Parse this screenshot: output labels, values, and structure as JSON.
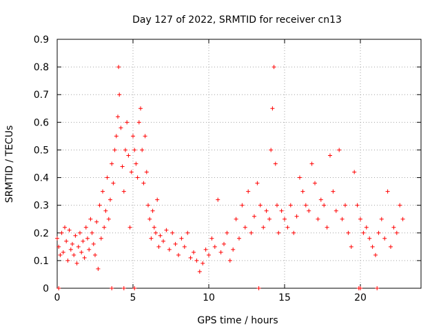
{
  "chart_data": {
    "type": "scatter",
    "title": "Day 127 of 2022, SRMTID for receiver cn13",
    "xlabel": "GPS time / hours",
    "ylabel": "SRMTID / TECUs",
    "xlim": [
      0,
      24
    ],
    "ylim": [
      0,
      0.9
    ],
    "xticks": [
      0,
      5,
      10,
      15,
      20
    ],
    "yticks": [
      0,
      0.1,
      0.2,
      0.3,
      0.4,
      0.5,
      0.6,
      0.7,
      0.8,
      0.9
    ],
    "xtick_labels": [
      "0",
      "5",
      "10",
      "15",
      "20"
    ],
    "ytick_labels": [
      "0",
      "0.1",
      "0.2",
      "0.3",
      "0.4",
      "0.5",
      "0.6",
      "0.7",
      "0.8",
      "0.9"
    ],
    "grid": true,
    "marker": "+",
    "color": "#ff0000",
    "series": [
      {
        "name": "SRMTID",
        "points": [
          [
            0.0,
            0.18
          ],
          [
            0.1,
            0.15
          ],
          [
            0.2,
            0.12
          ],
          [
            0.3,
            0.2
          ],
          [
            0.4,
            0.13
          ],
          [
            0.5,
            0.22
          ],
          [
            0.6,
            0.17
          ],
          [
            0.7,
            0.1
          ],
          [
            0.8,
            0.21
          ],
          [
            0.9,
            0.14
          ],
          [
            1.0,
            0.16
          ],
          [
            1.1,
            0.12
          ],
          [
            1.2,
            0.19
          ],
          [
            1.3,
            0.09
          ],
          [
            1.4,
            0.15
          ],
          [
            1.5,
            0.2
          ],
          [
            1.6,
            0.13
          ],
          [
            1.7,
            0.17
          ],
          [
            1.8,
            0.11
          ],
          [
            1.9,
            0.22
          ],
          [
            2.0,
            0.18
          ],
          [
            2.1,
            0.14
          ],
          [
            2.2,
            0.25
          ],
          [
            2.3,
            0.2
          ],
          [
            2.4,
            0.16
          ],
          [
            2.5,
            0.12
          ],
          [
            2.6,
            0.24
          ],
          [
            2.7,
            0.07
          ],
          [
            2.8,
            0.3
          ],
          [
            2.9,
            0.18
          ],
          [
            3.0,
            0.35
          ],
          [
            3.1,
            0.22
          ],
          [
            3.2,
            0.28
          ],
          [
            3.3,
            0.4
          ],
          [
            3.4,
            0.25
          ],
          [
            3.5,
            0.32
          ],
          [
            3.6,
            0.45
          ],
          [
            3.7,
            0.38
          ],
          [
            3.8,
            0.5
          ],
          [
            3.9,
            0.55
          ],
          [
            4.0,
            0.62
          ],
          [
            4.05,
            0.8
          ],
          [
            4.1,
            0.7
          ],
          [
            4.2,
            0.58
          ],
          [
            4.3,
            0.44
          ],
          [
            4.4,
            0.35
          ],
          [
            4.5,
            0.5
          ],
          [
            4.6,
            0.6
          ],
          [
            4.7,
            0.48
          ],
          [
            4.8,
            0.22
          ],
          [
            4.9,
            0.42
          ],
          [
            5.0,
            0.55
          ],
          [
            5.1,
            0.5
          ],
          [
            5.2,
            0.45
          ],
          [
            5.3,
            0.4
          ],
          [
            5.4,
            0.6
          ],
          [
            5.5,
            0.65
          ],
          [
            5.6,
            0.5
          ],
          [
            5.7,
            0.38
          ],
          [
            5.8,
            0.55
          ],
          [
            5.9,
            0.42
          ],
          [
            6.0,
            0.3
          ],
          [
            6.1,
            0.25
          ],
          [
            6.2,
            0.18
          ],
          [
            6.3,
            0.28
          ],
          [
            6.4,
            0.22
          ],
          [
            6.5,
            0.2
          ],
          [
            6.6,
            0.32
          ],
          [
            6.7,
            0.15
          ],
          [
            6.8,
            0.19
          ],
          [
            7.0,
            0.17
          ],
          [
            7.2,
            0.21
          ],
          [
            7.4,
            0.14
          ],
          [
            7.6,
            0.2
          ],
          [
            7.8,
            0.16
          ],
          [
            8.0,
            0.12
          ],
          [
            8.2,
            0.18
          ],
          [
            8.4,
            0.15
          ],
          [
            8.6,
            0.2
          ],
          [
            8.8,
            0.11
          ],
          [
            9.0,
            0.13
          ],
          [
            9.2,
            0.1
          ],
          [
            9.4,
            0.06
          ],
          [
            9.6,
            0.09
          ],
          [
            9.8,
            0.14
          ],
          [
            10.0,
            0.12
          ],
          [
            10.2,
            0.18
          ],
          [
            10.4,
            0.15
          ],
          [
            10.6,
            0.32
          ],
          [
            10.8,
            0.13
          ],
          [
            11.0,
            0.16
          ],
          [
            11.2,
            0.2
          ],
          [
            11.4,
            0.1
          ],
          [
            11.6,
            0.14
          ],
          [
            11.8,
            0.25
          ],
          [
            12.0,
            0.18
          ],
          [
            12.2,
            0.3
          ],
          [
            12.4,
            0.22
          ],
          [
            12.6,
            0.35
          ],
          [
            12.8,
            0.2
          ],
          [
            13.0,
            0.26
          ],
          [
            13.2,
            0.38
          ],
          [
            13.4,
            0.3
          ],
          [
            13.6,
            0.22
          ],
          [
            13.8,
            0.28
          ],
          [
            14.0,
            0.25
          ],
          [
            14.1,
            0.5
          ],
          [
            14.2,
            0.65
          ],
          [
            14.3,
            0.8
          ],
          [
            14.4,
            0.45
          ],
          [
            14.5,
            0.3
          ],
          [
            14.6,
            0.2
          ],
          [
            14.8,
            0.28
          ],
          [
            15.0,
            0.25
          ],
          [
            15.2,
            0.22
          ],
          [
            15.4,
            0.3
          ],
          [
            15.6,
            0.2
          ],
          [
            15.8,
            0.26
          ],
          [
            16.0,
            0.4
          ],
          [
            16.2,
            0.35
          ],
          [
            16.4,
            0.3
          ],
          [
            16.6,
            0.28
          ],
          [
            16.8,
            0.45
          ],
          [
            17.0,
            0.38
          ],
          [
            17.2,
            0.25
          ],
          [
            17.4,
            0.32
          ],
          [
            17.6,
            0.3
          ],
          [
            17.8,
            0.22
          ],
          [
            18.0,
            0.48
          ],
          [
            18.2,
            0.35
          ],
          [
            18.4,
            0.28
          ],
          [
            18.6,
            0.5
          ],
          [
            18.8,
            0.25
          ],
          [
            19.0,
            0.3
          ],
          [
            19.2,
            0.2
          ],
          [
            19.4,
            0.15
          ],
          [
            19.6,
            0.42
          ],
          [
            19.8,
            0.3
          ],
          [
            20.0,
            0.25
          ],
          [
            20.2,
            0.2
          ],
          [
            20.4,
            0.22
          ],
          [
            20.6,
            0.18
          ],
          [
            20.8,
            0.15
          ],
          [
            21.0,
            0.12
          ],
          [
            21.2,
            0.2
          ],
          [
            21.4,
            0.25
          ],
          [
            21.6,
            0.18
          ],
          [
            21.8,
            0.35
          ],
          [
            22.0,
            0.15
          ],
          [
            22.2,
            0.22
          ],
          [
            22.4,
            0.2
          ],
          [
            22.6,
            0.3
          ],
          [
            22.8,
            0.25
          ]
        ]
      }
    ],
    "zero_points": [
      0.1,
      3.6,
      4.4,
      5.1,
      13.3,
      19.9,
      20.0,
      21.1
    ]
  }
}
